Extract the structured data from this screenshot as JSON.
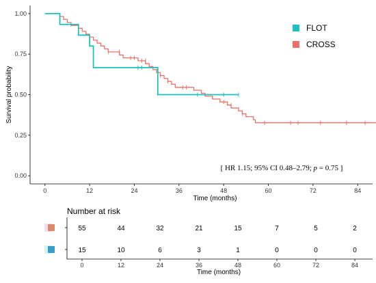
{
  "chart_data": [
    {
      "type": "line",
      "ylabel": "Survival probability",
      "xlabel": "Time (months)",
      "xlim": [
        -4,
        88
      ],
      "ylim": [
        -0.05,
        1.05
      ],
      "x_ticks": [
        "0",
        "12",
        "24",
        "36",
        "48",
        "60",
        "72",
        "84"
      ],
      "y_ticks": [
        "0.00",
        "0.25",
        "0.50",
        "0.75",
        "1.00"
      ],
      "annotation": "[ HR 1.15; 95% CI 0.48–2.79; p = 0.75 ]",
      "legend_position": "top-right",
      "series": [
        {
          "name": "FLOT",
          "color": "#1fbfbf",
          "steps": [
            [
              0,
              1.0
            ],
            [
              4,
              0.933
            ],
            [
              9,
              0.867
            ],
            [
              12,
              0.8
            ],
            [
              13,
              0.667
            ],
            [
              30,
              0.667
            ],
            [
              30.3,
              0.5
            ],
            [
              52,
              0.5
            ]
          ],
          "censored": [
            [
              7,
              0.933
            ],
            [
              25,
              0.667
            ],
            [
              26,
              0.667
            ],
            [
              41,
              0.5
            ],
            [
              48,
              0.5
            ],
            [
              52,
              0.5
            ]
          ]
        },
        {
          "name": "CROSS",
          "color": "#ee6f66",
          "steps": [
            [
              0,
              1.0
            ],
            [
              4,
              0.982
            ],
            [
              5,
              0.964
            ],
            [
              6,
              0.945
            ],
            [
              7,
              0.927
            ],
            [
              9,
              0.909
            ],
            [
              10,
              0.891
            ],
            [
              11,
              0.873
            ],
            [
              12,
              0.855
            ],
            [
              13,
              0.836
            ],
            [
              14,
              0.818
            ],
            [
              15,
              0.8
            ],
            [
              16,
              0.782
            ],
            [
              17,
              0.764
            ],
            [
              20,
              0.745
            ],
            [
              21,
              0.727
            ],
            [
              25,
              0.709
            ],
            [
              27,
              0.691
            ],
            [
              28,
              0.673
            ],
            [
              29,
              0.655
            ],
            [
              30,
              0.636
            ],
            [
              31,
              0.618
            ],
            [
              32,
              0.6
            ],
            [
              33,
              0.582
            ],
            [
              34,
              0.564
            ],
            [
              35,
              0.545
            ],
            [
              40,
              0.527
            ],
            [
              42,
              0.509
            ],
            [
              43,
              0.491
            ],
            [
              45,
              0.473
            ],
            [
              47,
              0.455
            ],
            [
              49,
              0.436
            ],
            [
              50,
              0.418
            ],
            [
              52,
              0.4
            ],
            [
              53,
              0.382
            ],
            [
              54,
              0.364
            ],
            [
              56,
              0.345
            ],
            [
              56.5,
              0.327
            ],
            [
              89,
              0.327
            ]
          ],
          "censored": [
            [
              17,
              0.764
            ],
            [
              20,
              0.764
            ],
            [
              23,
              0.727
            ],
            [
              24,
              0.727
            ],
            [
              26,
              0.709
            ],
            [
              27,
              0.709
            ],
            [
              31,
              0.618
            ],
            [
              33,
              0.582
            ],
            [
              37,
              0.545
            ],
            [
              38,
              0.545
            ],
            [
              48,
              0.455
            ],
            [
              50,
              0.436
            ],
            [
              53,
              0.382
            ],
            [
              59,
              0.327
            ],
            [
              66,
              0.327
            ],
            [
              68,
              0.327
            ],
            [
              74,
              0.327
            ],
            [
              81,
              0.327
            ],
            [
              86,
              0.327
            ]
          ]
        }
      ]
    },
    {
      "type": "table",
      "title": "Number at risk",
      "xlabel": "Time (months)",
      "x_ticks": [
        "0",
        "12",
        "24",
        "36",
        "48",
        "60",
        "72",
        "84"
      ],
      "rows": [
        {
          "group": "CROSS",
          "color": "#d98a6c",
          "shade": "#f6ddf1",
          "values": [
            "55",
            "44",
            "32",
            "21",
            "15",
            "7",
            "5",
            "2"
          ]
        },
        {
          "group": "FLOT",
          "color": "#3b9dc5",
          "shade": "#d6f4f7",
          "values": [
            "15",
            "10",
            "6",
            "3",
            "1",
            "0",
            "0",
            "0"
          ]
        }
      ]
    }
  ]
}
